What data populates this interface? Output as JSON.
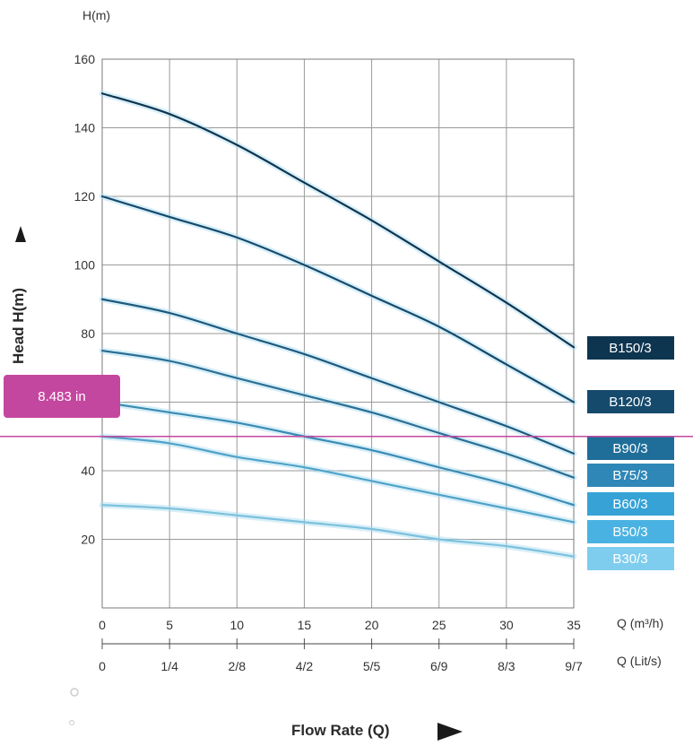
{
  "chart_data": {
    "type": "line",
    "ylabel_unit": "H(m)",
    "ylabel": "Head H(m)",
    "xlabel": "Flow Rate (Q)",
    "xlim": [
      0,
      35
    ],
    "ylim": [
      0,
      160
    ],
    "y_ticks": [
      20,
      40,
      60,
      80,
      100,
      120,
      140,
      160
    ],
    "y_tick_labels": [
      "20",
      "40",
      "",
      "80",
      "100",
      "120",
      "140",
      "160"
    ],
    "x_ticks": [
      0,
      5,
      10,
      15,
      20,
      25,
      30,
      35
    ],
    "x_tick_labels": [
      "0",
      "5",
      "10",
      "15",
      "20",
      "25",
      "30",
      "35"
    ],
    "x_unit_label_1": "Q  (m³/h)",
    "x2_tick_labels": [
      "0",
      "1/4",
      "2/8",
      "4/2",
      "5/5",
      "6/9",
      "8/3",
      "9/7"
    ],
    "x_unit_label_2": "Q  (Lit/s)",
    "grid": true,
    "series": [
      {
        "name": "B150/3",
        "color": "#0e3550",
        "x": [
          0,
          5,
          10,
          15,
          20,
          25,
          30,
          35
        ],
        "values": [
          150,
          144,
          135,
          124,
          113,
          101,
          89,
          76
        ]
      },
      {
        "name": "B120/3",
        "color": "#154a6d",
        "x": [
          0,
          5,
          10,
          15,
          20,
          25,
          30,
          35
        ],
        "values": [
          120,
          114,
          108,
          100,
          91,
          82,
          71,
          60
        ]
      },
      {
        "name": "B90/3",
        "color": "#1d5a7e",
        "x": [
          0,
          5,
          10,
          15,
          20,
          25,
          30,
          35
        ],
        "values": [
          90,
          86,
          80,
          74,
          67,
          60,
          53,
          45
        ]
      },
      {
        "name": "B75/3",
        "color": "#2b6f95",
        "x": [
          0,
          5,
          10,
          15,
          20,
          25,
          30,
          35
        ],
        "values": [
          75,
          72,
          67,
          62,
          57,
          51,
          45,
          38
        ]
      },
      {
        "name": "B60/3",
        "color": "#3a8bb4",
        "x": [
          0,
          5,
          10,
          15,
          20,
          25,
          30,
          35
        ],
        "values": [
          60,
          57,
          54,
          50,
          46,
          41,
          36,
          30
        ]
      },
      {
        "name": "B50/3",
        "color": "#4fa2c8",
        "x": [
          0,
          5,
          10,
          15,
          20,
          25,
          30,
          35
        ],
        "values": [
          50,
          48,
          44,
          41,
          37,
          33,
          29,
          25
        ]
      },
      {
        "name": "B30/3",
        "color": "#7cc1dd",
        "x": [
          0,
          5,
          10,
          15,
          20,
          25,
          30,
          35
        ],
        "values": [
          30,
          29,
          27,
          25,
          23,
          20,
          18,
          15
        ]
      }
    ],
    "legend_colors": [
      "#0e3550",
      "#154a6d",
      "#1f6e99",
      "#2f87b7",
      "#36a2d6",
      "#4ab2e2",
      "#7fcdee"
    ],
    "cursor": {
      "label": "8.483 in",
      "value": 50,
      "color": "#c4479f"
    }
  }
}
